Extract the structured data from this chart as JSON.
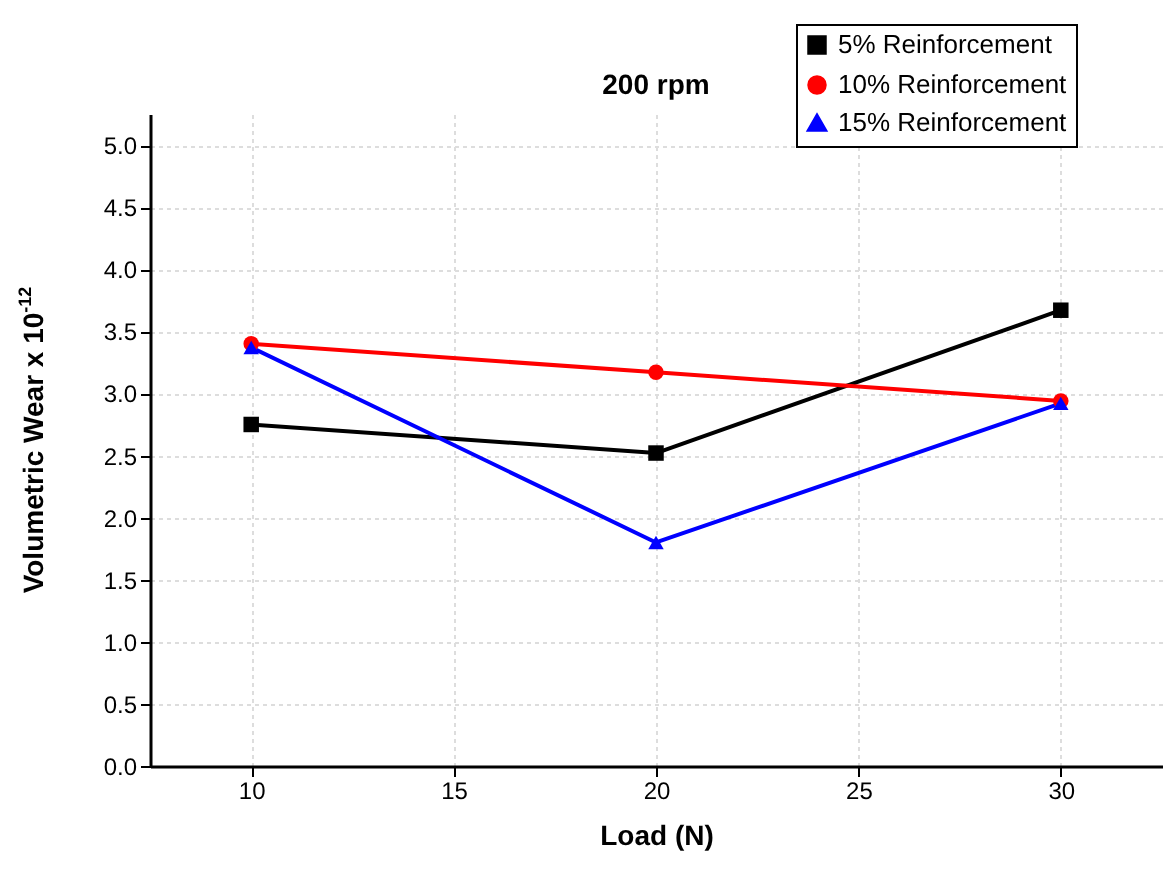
{
  "chart_data": {
    "type": "line",
    "title": "200 rpm",
    "xlabel": "Load (N)",
    "ylabel": "Volumetric Wear x 10$^{-12}$",
    "x": [
      10,
      20,
      30
    ],
    "series": [
      {
        "name": "5%  Reinforcement",
        "color": "#000000",
        "marker": "square",
        "values": [
          2.75,
          2.52,
          3.67
        ]
      },
      {
        "name": "10% Reinforcement",
        "color": "#ff0000",
        "marker": "circle",
        "values": [
          3.4,
          3.17,
          2.94
        ]
      },
      {
        "name": "15% Reinforcement",
        "color": "#0000ff",
        "marker": "triangle",
        "values": [
          3.37,
          1.8,
          2.92
        ]
      }
    ],
    "xlim": [
      7.5,
      32.5
    ],
    "xticks": [
      10,
      15,
      20,
      25,
      30
    ],
    "ylim": [
      0,
      5.25
    ],
    "yticks": [
      {
        "value": 0,
        "label": "0.0"
      },
      {
        "value": 0.5,
        "label": "0.5"
      },
      {
        "value": 1,
        "label": "1.0"
      },
      {
        "value": 1.5,
        "label": "1.5"
      },
      {
        "value": 2,
        "label": "2.0"
      },
      {
        "value": 2.5,
        "label": "2.5"
      },
      {
        "value": 3,
        "label": "3.0"
      },
      {
        "value": 3.5,
        "label": "3.5"
      },
      {
        "value": 4,
        "label": "4.0"
      },
      {
        "value": 4.5,
        "label": "4.5"
      },
      {
        "value": 5,
        "label": "5.0"
      }
    ],
    "grid": true,
    "legend": "top right",
    "line_style": "solid"
  }
}
